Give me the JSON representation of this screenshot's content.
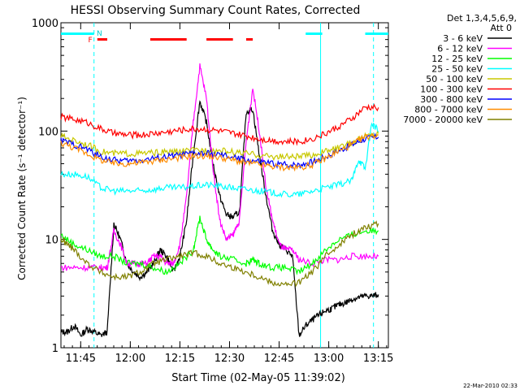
{
  "chart_data": {
    "type": "line",
    "title": "HESSI Observing Summary Count Rates, Corrected",
    "xlabel": "Start Time (02-May-05 11:39:02)",
    "ylabel": "Corrected Count Rate (s⁻¹ detector⁻¹)",
    "y_scale": "log",
    "ylim": [
      1,
      1000
    ],
    "xlim": [
      "11:39:02",
      "13:18:00"
    ],
    "x_ticks": [
      "11:45",
      "12:00",
      "12:15",
      "12:30",
      "12:45",
      "13:00",
      "13:15"
    ],
    "y_ticks": [
      "1",
      "10",
      "100",
      "1000"
    ],
    "legend_title": [
      "Det 1,3,4,5,6,9,",
      "Att 0"
    ],
    "legend_position": "right",
    "timestamp": "22-Mar-2010 02:33",
    "flag_labels": [
      "F",
      "N"
    ],
    "x_unit": "minutes after 11:39:02",
    "series": [
      {
        "name": "3 - 6 keV",
        "color": "#000000",
        "x": [
          0,
          2,
          4,
          6,
          8,
          10,
          12,
          14,
          16,
          18,
          20,
          22,
          24,
          26,
          28,
          30,
          32,
          34,
          36,
          38,
          40,
          42,
          44,
          46,
          48,
          50,
          52,
          54,
          56,
          58,
          60,
          62,
          64,
          66,
          68,
          70,
          72,
          74,
          76,
          78,
          80,
          82,
          84,
          86,
          88,
          90,
          92,
          94,
          96
        ],
        "y": [
          1.4,
          1.4,
          1.6,
          1.3,
          1.5,
          1.4,
          1.3,
          1.4,
          14,
          10,
          6,
          5,
          4.5,
          5,
          6,
          8,
          7,
          5,
          7,
          15,
          60,
          190,
          120,
          50,
          25,
          17,
          16,
          18,
          150,
          160,
          60,
          25,
          12,
          9,
          8,
          7,
          1.3,
          1.6,
          1.8,
          2,
          2.2,
          2.3,
          2.5,
          2.6,
          2.8,
          2.9,
          3,
          3,
          3.1
        ]
      },
      {
        "name": "6 - 12 keV",
        "color": "#ff00ff",
        "x": [
          0,
          4,
          8,
          12,
          14,
          16,
          18,
          20,
          22,
          24,
          26,
          28,
          30,
          32,
          34,
          36,
          38,
          40,
          42,
          44,
          46,
          48,
          50,
          52,
          54,
          56,
          58,
          60,
          62,
          64,
          66,
          68,
          70,
          72,
          76,
          80,
          84,
          88,
          92,
          96
        ],
        "y": [
          5.5,
          5.5,
          5.5,
          5.5,
          5.5,
          12,
          9,
          6,
          6,
          6,
          6,
          7,
          7,
          6,
          6,
          9,
          25,
          120,
          400,
          200,
          45,
          15,
          10,
          11,
          15,
          80,
          250,
          100,
          30,
          15,
          9,
          8,
          8,
          6.5,
          6,
          6.5,
          6.5,
          7,
          7,
          7
        ]
      },
      {
        "name": "12 - 25 keV",
        "color": "#00ff00",
        "x": [
          0,
          4,
          8,
          12,
          16,
          20,
          24,
          28,
          32,
          36,
          40,
          42,
          44,
          46,
          48,
          52,
          56,
          58,
          60,
          64,
          68,
          72,
          76,
          80,
          84,
          88,
          92,
          96
        ],
        "y": [
          11,
          9,
          8,
          7,
          7,
          6,
          6,
          5.5,
          5,
          6,
          8,
          16,
          10,
          8,
          7,
          6.5,
          6,
          6.5,
          6,
          5.5,
          5.5,
          5,
          6,
          8,
          10,
          11,
          12,
          12
        ]
      },
      {
        "name": "25 - 50 keV",
        "color": "#00ffff",
        "x": [
          0,
          4,
          8,
          12,
          16,
          20,
          24,
          28,
          32,
          36,
          40,
          44,
          48,
          52,
          56,
          60,
          64,
          68,
          72,
          76,
          80,
          84,
          88,
          90,
          92,
          94,
          96
        ],
        "y": [
          40,
          40,
          38,
          30,
          28,
          28,
          28,
          29,
          30,
          30,
          31,
          32,
          31,
          30,
          29,
          28,
          27,
          26,
          26,
          28,
          30,
          32,
          35,
          55,
          45,
          120,
          100
        ]
      },
      {
        "name": "50 - 100 keV",
        "color": "#c8c800",
        "x": [
          0,
          4,
          8,
          12,
          16,
          20,
          24,
          28,
          32,
          36,
          40,
          44,
          48,
          52,
          56,
          60,
          64,
          68,
          72,
          76,
          80,
          84,
          88,
          92,
          96
        ],
        "y": [
          90,
          82,
          75,
          65,
          62,
          62,
          62,
          63,
          64,
          65,
          66,
          67,
          66,
          64,
          62,
          60,
          58,
          58,
          58,
          60,
          65,
          70,
          78,
          90,
          95
        ]
      },
      {
        "name": "100 - 300 keV",
        "color": "#ff0000",
        "x": [
          0,
          4,
          8,
          12,
          16,
          20,
          24,
          28,
          32,
          36,
          40,
          44,
          48,
          52,
          56,
          60,
          64,
          68,
          72,
          76,
          80,
          84,
          88,
          92,
          96
        ],
        "y": [
          135,
          128,
          120,
          105,
          95,
          92,
          92,
          95,
          98,
          102,
          105,
          104,
          100,
          95,
          90,
          85,
          82,
          80,
          80,
          85,
          95,
          110,
          130,
          165,
          165
        ]
      },
      {
        "name": "300 - 800 keV",
        "color": "#0000ff",
        "x": [
          0,
          4,
          8,
          12,
          16,
          20,
          24,
          28,
          32,
          36,
          40,
          44,
          48,
          52,
          56,
          60,
          64,
          68,
          72,
          76,
          80,
          84,
          88,
          92,
          96
        ],
        "y": [
          82,
          75,
          68,
          58,
          54,
          53,
          54,
          56,
          58,
          60,
          62,
          62,
          60,
          57,
          54,
          52,
          50,
          49,
          49,
          52,
          58,
          66,
          75,
          85,
          88
        ]
      },
      {
        "name": "800 - 7000 keV",
        "color": "#ff8c00",
        "x": [
          0,
          4,
          8,
          12,
          16,
          20,
          24,
          28,
          32,
          36,
          40,
          44,
          48,
          52,
          56,
          60,
          64,
          68,
          72,
          76,
          80,
          84,
          88,
          92,
          96
        ],
        "y": [
          78,
          70,
          62,
          54,
          50,
          50,
          51,
          53,
          55,
          57,
          59,
          59,
          57,
          54,
          51,
          49,
          47,
          46,
          46,
          49,
          56,
          65,
          75,
          88,
          92
        ]
      },
      {
        "name": "7000 - 20000 keV",
        "color": "#808000",
        "x": [
          0,
          2,
          4,
          8,
          12,
          16,
          20,
          24,
          28,
          32,
          36,
          40,
          44,
          48,
          52,
          56,
          60,
          64,
          68,
          72,
          76,
          80,
          84,
          88,
          92,
          96
        ],
        "y": [
          10,
          9,
          8,
          6,
          5,
          4.5,
          4.5,
          5,
          6,
          6.5,
          7,
          7.5,
          7,
          6,
          5.5,
          5,
          4.5,
          4,
          3.8,
          4,
          5,
          7,
          9,
          11,
          13,
          14
        ]
      }
    ],
    "bars": {
      "cyan": {
        "color": "#00ffff",
        "segments": [
          [
            0,
            10
          ],
          [
            74,
            79
          ],
          [
            92,
            99
          ]
        ]
      },
      "red": {
        "color": "#ff0000",
        "segments": [
          [
            11,
            14
          ],
          [
            27,
            38
          ],
          [
            44,
            52
          ],
          [
            56,
            58
          ]
        ]
      }
    },
    "vlines": [
      {
        "x": 10,
        "style": "dashed",
        "color": "#00ffff"
      },
      {
        "x": 78.5,
        "style": "solid",
        "color": "#00ffff"
      },
      {
        "x": 94.5,
        "style": "dashed",
        "color": "#00ffff"
      }
    ]
  }
}
